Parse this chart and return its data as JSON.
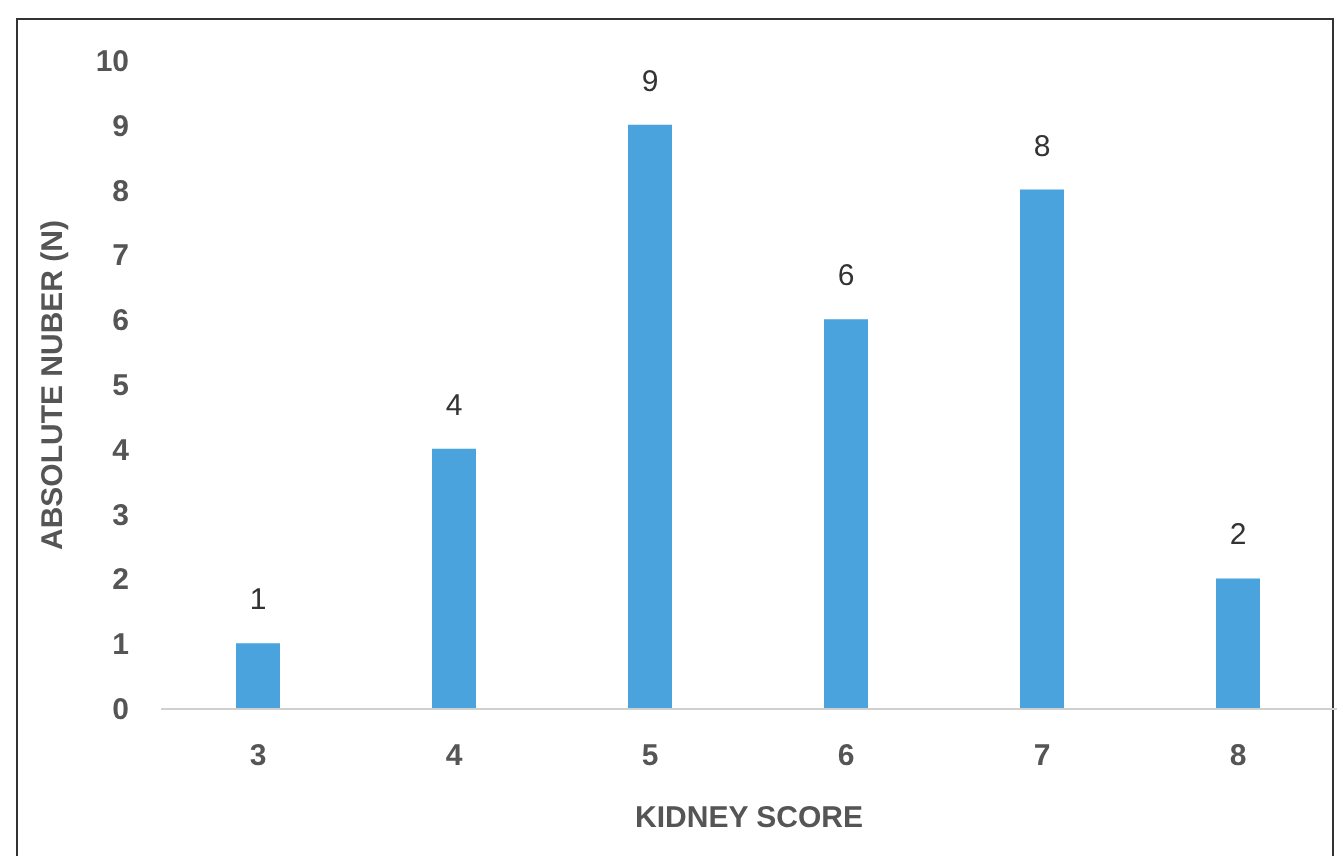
{
  "chart_data": {
    "type": "bar",
    "xlabel": "KIDNEY SCORE",
    "ylabel": "ABSOLUTE NUBER (N)",
    "categories": [
      "3",
      "4",
      "5",
      "6",
      "7",
      "8"
    ],
    "values": [
      1,
      4,
      9,
      6,
      8,
      2
    ],
    "color": "#4aa3dc",
    "ylim": [
      0,
      10
    ],
    "yticks": [
      0,
      1,
      2,
      3,
      4,
      5,
      6,
      7,
      8,
      9,
      10
    ],
    "data_labels": true
  }
}
